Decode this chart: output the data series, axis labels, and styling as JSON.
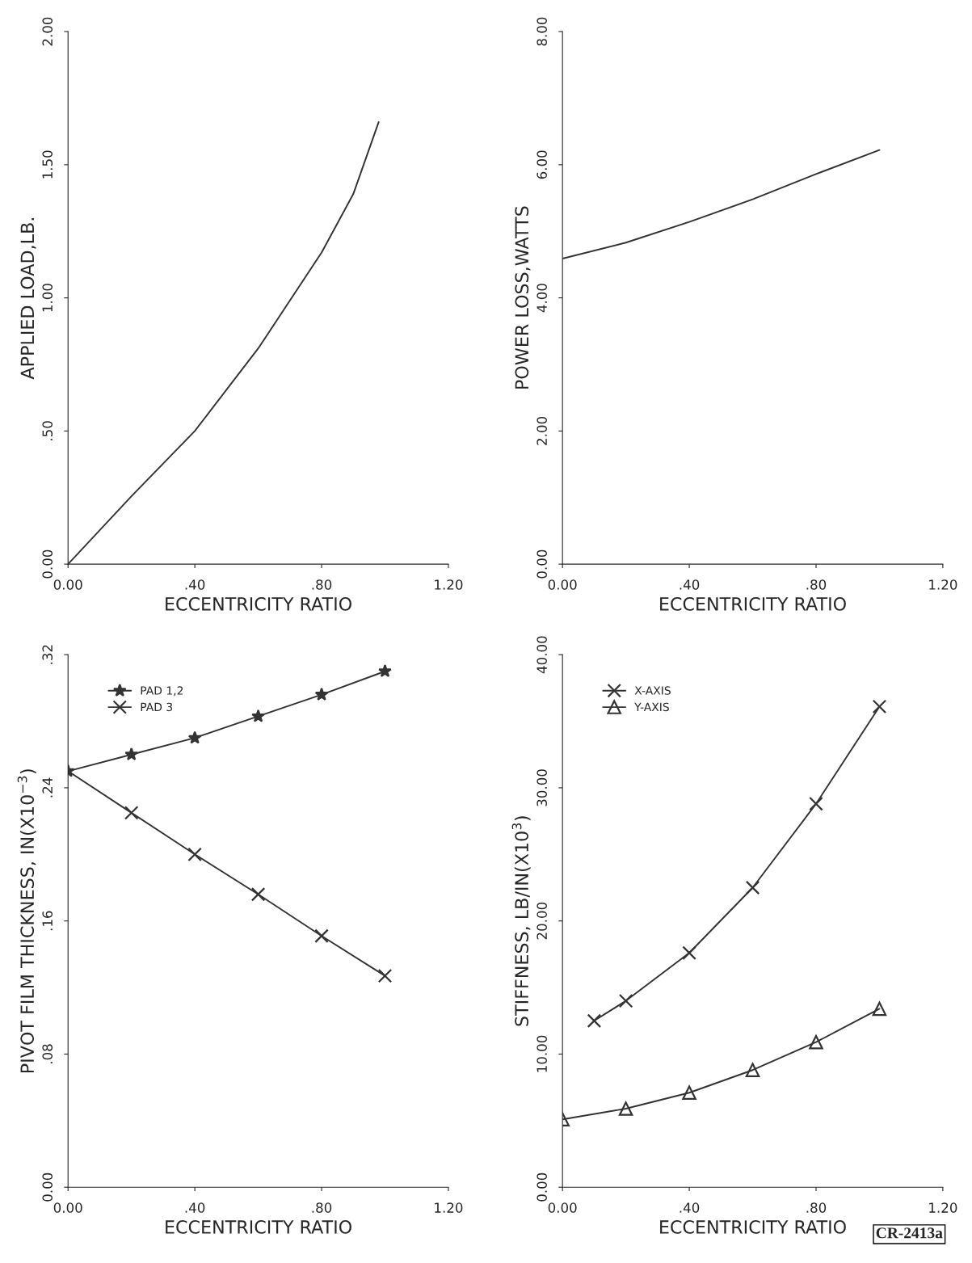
{
  "chart_data": [
    {
      "type": "line",
      "xlabel": "ECCENTRICITY RATIO",
      "ylabel": "APPLIED LOAD,LB.",
      "xlim": [
        0,
        1.2
      ],
      "xticks": [
        {
          "value": 0,
          "label": "0.00"
        },
        {
          "value": 0.4,
          "label": ".40"
        },
        {
          "value": 0.8,
          "label": ".80"
        },
        {
          "value": 1.2,
          "label": "1.20"
        }
      ],
      "ylim": [
        0,
        2
      ],
      "yticks": [
        {
          "value": 0,
          "label": "0.00"
        },
        {
          "value": 0.5,
          "label": ".50"
        },
        {
          "value": 1,
          "label": "1.00"
        },
        {
          "value": 1.5,
          "label": "1.50"
        },
        {
          "value": 2,
          "label": "2.00"
        }
      ],
      "series": [
        {
          "color": "#333333",
          "x": [
            0,
            0.2,
            0.4,
            0.6,
            0.8,
            0.9,
            0.98
          ],
          "values": [
            0,
            0.255,
            0.5,
            0.81,
            1.17,
            1.39,
            1.66
          ]
        }
      ],
      "grid": false,
      "legend": false,
      "marker": "none"
    },
    {
      "type": "line",
      "xlabel": "ECCENTRICITY RATIO",
      "ylabel": "POWER LOSS,WATTS",
      "xlim": [
        0,
        1.2
      ],
      "xticks": [
        {
          "value": 0,
          "label": "0.00"
        },
        {
          "value": 0.4,
          "label": ".40"
        },
        {
          "value": 0.8,
          "label": ".80"
        },
        {
          "value": 1.2,
          "label": "1.20"
        }
      ],
      "ylim": [
        0,
        8
      ],
      "yticks": [
        {
          "value": 0,
          "label": "0.00"
        },
        {
          "value": 2,
          "label": "2.00"
        },
        {
          "value": 4,
          "label": "4.00"
        },
        {
          "value": 6,
          "label": "6.00"
        },
        {
          "value": 8,
          "label": "8.00"
        }
      ],
      "series": [
        {
          "color": "#333333",
          "x": [
            0,
            0.2,
            0.4,
            0.6,
            0.8,
            1.0
          ],
          "values": [
            4.59,
            4.83,
            5.14,
            5.48,
            5.86,
            6.22
          ]
        }
      ],
      "grid": false,
      "legend": false,
      "marker": "none"
    },
    {
      "type": "line",
      "xlabel": "ECCENTRICITY RATIO",
      "ylabel": "PIVOT FILM THICKNESS, IN(X10$^{−3}$)",
      "xlim": [
        0,
        1.2
      ],
      "xticks": [
        {
          "value": 0,
          "label": "0.00"
        },
        {
          "value": 0.4,
          "label": ".40"
        },
        {
          "value": 0.8,
          "label": ".80"
        },
        {
          "value": 1.2,
          "label": "1.20"
        }
      ],
      "ylim": [
        0,
        0.32
      ],
      "yticks": [
        {
          "value": 0,
          "label": "0.00"
        },
        {
          "value": 0.08,
          "label": ".08"
        },
        {
          "value": 0.16,
          "label": ".16"
        },
        {
          "value": 0.24,
          "label": ".24"
        },
        {
          "value": 0.32,
          "label": ".32"
        }
      ],
      "series": [
        {
          "name": "PAD 1,2",
          "color": "#333333",
          "marker": "star",
          "x": [
            0,
            0.2,
            0.4,
            0.6,
            0.8,
            1.0
          ],
          "values": [
            0.25,
            0.26,
            0.27,
            0.283,
            0.296,
            0.31
          ]
        },
        {
          "name": "PAD 3",
          "color": "#333333",
          "marker": "cross",
          "x": [
            0,
            0.2,
            0.4,
            0.6,
            0.8,
            1.0
          ],
          "values": [
            0.25,
            0.225,
            0.2,
            0.176,
            0.151,
            0.127
          ]
        }
      ],
      "grid": false,
      "legend": "top left"
    },
    {
      "type": "line",
      "xlabel": "ECCENTRICITY RATIO",
      "ylabel": "STIFFNESS, LB/IN(X10$^{3}$)",
      "xlim": [
        0,
        1.2
      ],
      "xticks": [
        {
          "value": 0,
          "label": "0.00"
        },
        {
          "value": 0.4,
          "label": ".40"
        },
        {
          "value": 0.8,
          "label": ".80"
        },
        {
          "value": 1.2,
          "label": "1.20"
        }
      ],
      "ylim": [
        0,
        40
      ],
      "yticks": [
        {
          "value": 0,
          "label": "0.00"
        },
        {
          "value": 10,
          "label": "10.00"
        },
        {
          "value": 20,
          "label": "20.00"
        },
        {
          "value": 30,
          "label": "30.00"
        },
        {
          "value": 40,
          "label": "40.00"
        }
      ],
      "series": [
        {
          "name": "X-AXIS",
          "color": "#333333",
          "marker": "cross",
          "x": [
            0.1,
            0.2,
            0.4,
            0.6,
            0.8,
            1.0
          ],
          "values": [
            12.5,
            14.0,
            17.6,
            22.5,
            28.8,
            36.1
          ]
        },
        {
          "name": "Y-AXIS",
          "color": "#333333",
          "marker": "triangle",
          "x": [
            0,
            0.2,
            0.4,
            0.6,
            0.8,
            1.0
          ],
          "values": [
            5.1,
            5.9,
            7.1,
            8.8,
            10.9,
            13.4
          ]
        }
      ],
      "grid": false,
      "legend": "top left",
      "annotations": [
        "CR-2413a"
      ]
    }
  ]
}
